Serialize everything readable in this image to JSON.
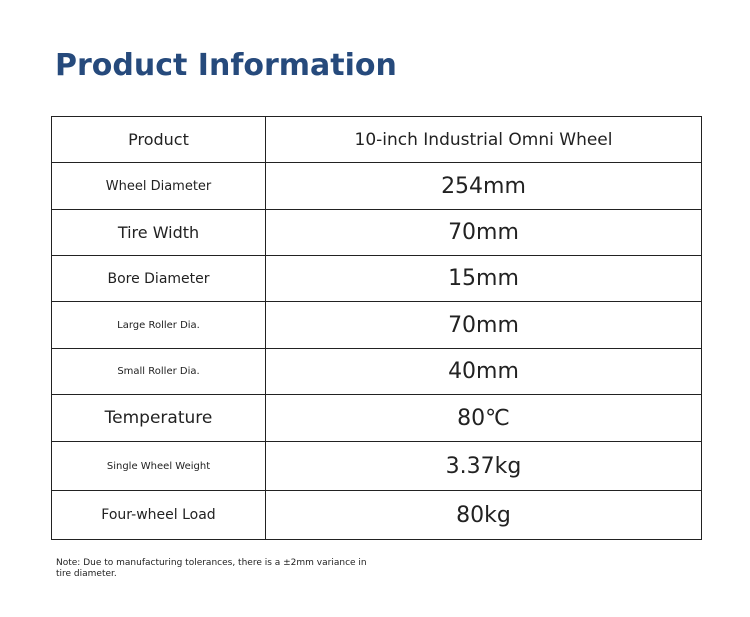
{
  "header": {
    "title": "Product Information"
  },
  "table": {
    "rows": [
      [
        "Product",
        "10-inch Industrial Omni Wheel"
      ],
      [
        "Wheel Diameter",
        "254mm"
      ],
      [
        "Tire Width",
        "70mm"
      ],
      [
        "Bore Diameter",
        "15mm"
      ],
      [
        "Large Roller Dia.",
        "70mm"
      ],
      [
        "Small Roller Dia.",
        "40mm"
      ],
      [
        "Temperature",
        "80℃"
      ],
      [
        "Single Wheel Weight",
        "3.37kg"
      ],
      [
        "Four-wheel Load",
        "80kg"
      ]
    ]
  },
  "note": "Note: Due to manufacturing tolerances, there is a ±2mm variance in tire diameter."
}
